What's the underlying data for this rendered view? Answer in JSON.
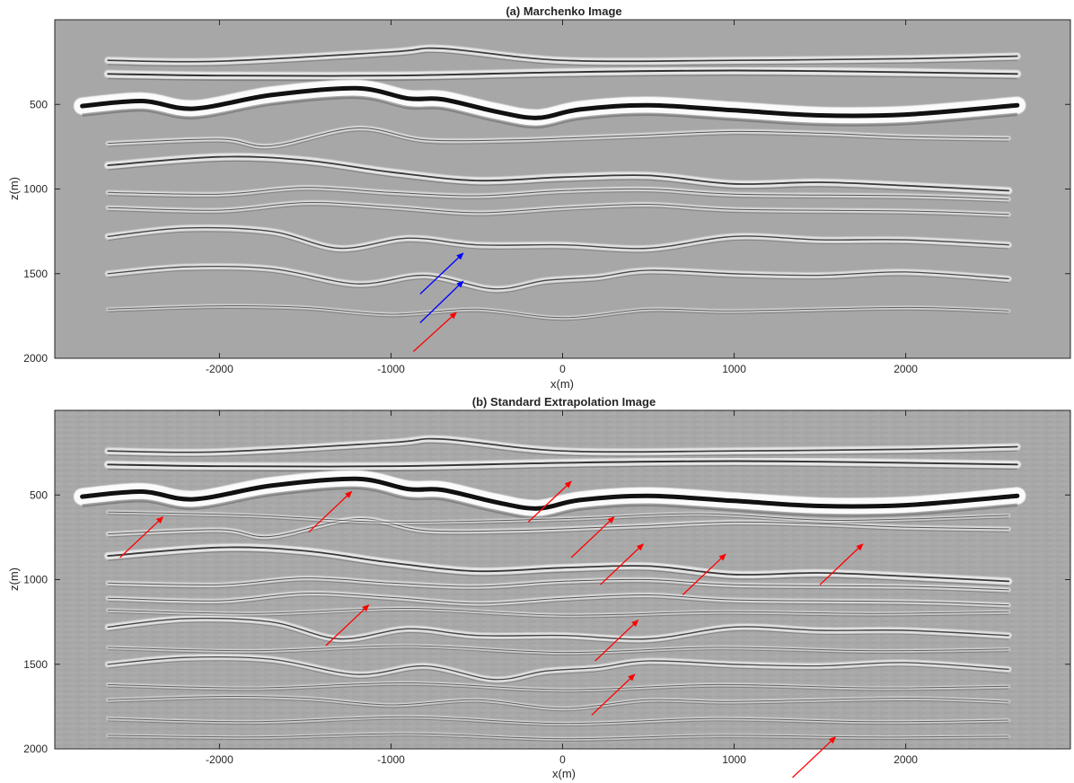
{
  "chart_data": [
    {
      "type": "seismic-image",
      "title": "(a) Marchenko Image",
      "xlabel": "x(m)",
      "ylabel": "z(m)",
      "xlim": [
        -2960,
        2960
      ],
      "ylim": [
        2000,
        0
      ],
      "xticks": [
        -2000,
        -1000,
        0,
        1000,
        2000
      ],
      "xtick_labels": [
        "-2000",
        "-1000",
        "0",
        "1000",
        "2000"
      ],
      "yticks": [
        500,
        1000,
        1500,
        2000
      ],
      "ytick_labels": [
        "500",
        "1000",
        "1500",
        "2000"
      ],
      "reflectors": [
        {
          "strength": 3.0,
          "x": [
            -2650,
            -2000,
            -1000,
            -700,
            0,
            1000,
            2000,
            2650
          ],
          "z": [
            240,
            245,
            190,
            170,
            240,
            240,
            230,
            215
          ]
        },
        {
          "strength": 3.5,
          "x": [
            -2650,
            -2000,
            -1000,
            0,
            1000,
            2000,
            2650
          ],
          "z": [
            320,
            330,
            330,
            310,
            300,
            310,
            320
          ]
        },
        {
          "strength": 9.0,
          "x": [
            -2800,
            -2450,
            -2150,
            -1700,
            -1200,
            -900,
            -700,
            -400,
            -150,
            100,
            500,
            1000,
            1500,
            2000,
            2650
          ],
          "z": [
            510,
            480,
            525,
            445,
            405,
            465,
            470,
            540,
            580,
            530,
            505,
            535,
            565,
            560,
            505
          ]
        },
        {
          "strength": 1.6,
          "x": [
            -2650,
            -2000,
            -1700,
            -1200,
            -800,
            -300,
            0,
            500,
            1000,
            1500,
            2000,
            2600
          ],
          "z": [
            730,
            705,
            745,
            640,
            710,
            710,
            700,
            680,
            660,
            670,
            690,
            700
          ]
        },
        {
          "strength": 3.2,
          "x": [
            -2650,
            -2000,
            -1500,
            -1000,
            -500,
            0,
            500,
            1000,
            1500,
            2000,
            2600
          ],
          "z": [
            860,
            810,
            830,
            900,
            950,
            930,
            920,
            970,
            960,
            980,
            1010
          ]
        },
        {
          "strength": 1.6,
          "x": [
            -2650,
            -2000,
            -1500,
            -1000,
            -500,
            0,
            500,
            1000,
            2000,
            2600
          ],
          "z": [
            1020,
            1030,
            990,
            1020,
            1040,
            1010,
            1000,
            1030,
            1040,
            1060
          ]
        },
        {
          "strength": 1.6,
          "x": [
            -2650,
            -2000,
            -1500,
            -1000,
            -500,
            0,
            500,
            1000,
            2000,
            2600
          ],
          "z": [
            1110,
            1125,
            1080,
            1105,
            1140,
            1110,
            1090,
            1120,
            1130,
            1150
          ]
        },
        {
          "strength": 2.6,
          "x": [
            -2650,
            -2200,
            -1700,
            -1300,
            -900,
            -500,
            0,
            500,
            1000,
            1500,
            2000,
            2600
          ],
          "z": [
            1280,
            1230,
            1250,
            1350,
            1290,
            1330,
            1330,
            1350,
            1280,
            1300,
            1300,
            1330
          ]
        },
        {
          "strength": 2.4,
          "x": [
            -2650,
            -2200,
            -1700,
            -1200,
            -800,
            -400,
            -100,
            200,
            500,
            1000,
            1500,
            2000,
            2600
          ],
          "z": [
            1500,
            1460,
            1470,
            1560,
            1510,
            1590,
            1540,
            1520,
            1480,
            1500,
            1510,
            1490,
            1530
          ]
        },
        {
          "strength": 1.0,
          "x": [
            -2650,
            -2000,
            -1500,
            -1000,
            -500,
            0,
            500,
            1000,
            2000,
            2600
          ],
          "z": [
            1710,
            1690,
            1700,
            1740,
            1710,
            1760,
            1710,
            1720,
            1700,
            1720
          ]
        }
      ],
      "arrows": [
        {
          "color": "#0000ff",
          "x1": -830,
          "z1": 1620,
          "x2": -580,
          "z2": 1380
        },
        {
          "color": "#0000ff",
          "x1": -830,
          "z1": 1790,
          "x2": -580,
          "z2": 1545
        },
        {
          "color": "#ff0000",
          "x1": -870,
          "z1": 1960,
          "x2": -620,
          "z2": 1730
        }
      ]
    },
    {
      "type": "seismic-image",
      "title": "(b) Standard Extrapolation Image",
      "xlabel": "x(m)",
      "ylabel": "z(m)",
      "xlim": [
        -2960,
        2960
      ],
      "ylim": [
        2000,
        0
      ],
      "xticks": [
        -2000,
        -1000,
        0,
        1000,
        2000
      ],
      "xtick_labels": [
        "-2000",
        "-1000",
        "0",
        "1000",
        "2000"
      ],
      "yticks": [
        500,
        1000,
        1500,
        2000
      ],
      "ytick_labels": [
        "500",
        "1000",
        "1500",
        "2000"
      ],
      "reflectors": [
        {
          "strength": 3.0,
          "x": [
            -2650,
            -2000,
            -1000,
            -700,
            0,
            1000,
            2000,
            2650
          ],
          "z": [
            240,
            245,
            190,
            170,
            240,
            240,
            230,
            215
          ]
        },
        {
          "strength": 3.5,
          "x": [
            -2650,
            -2000,
            -1000,
            0,
            1000,
            2000,
            2650
          ],
          "z": [
            320,
            330,
            330,
            310,
            300,
            310,
            320
          ]
        },
        {
          "strength": 9.0,
          "x": [
            -2800,
            -2450,
            -2150,
            -1700,
            -1200,
            -900,
            -700,
            -400,
            -150,
            100,
            500,
            1000,
            1500,
            2000,
            2650
          ],
          "z": [
            510,
            480,
            525,
            445,
            405,
            465,
            470,
            540,
            580,
            530,
            505,
            535,
            565,
            560,
            505
          ]
        },
        {
          "strength": 1.6,
          "x": [
            -2650,
            -2000,
            -1700,
            -1200,
            -800,
            -300,
            0,
            500,
            1000,
            1500,
            2000,
            2600
          ],
          "z": [
            730,
            705,
            745,
            640,
            710,
            710,
            700,
            680,
            660,
            670,
            690,
            700
          ]
        },
        {
          "strength": 3.2,
          "x": [
            -2650,
            -2000,
            -1500,
            -1000,
            -500,
            0,
            500,
            1000,
            1500,
            2000,
            2600
          ],
          "z": [
            860,
            810,
            830,
            900,
            950,
            930,
            920,
            970,
            960,
            980,
            1010
          ]
        },
        {
          "strength": 1.6,
          "x": [
            -2650,
            -2000,
            -1500,
            -1000,
            -500,
            0,
            500,
            1000,
            2000,
            2600
          ],
          "z": [
            1020,
            1030,
            990,
            1020,
            1040,
            1010,
            1000,
            1030,
            1040,
            1060
          ]
        },
        {
          "strength": 1.6,
          "x": [
            -2650,
            -2000,
            -1500,
            -1000,
            -500,
            0,
            500,
            1000,
            2000,
            2600
          ],
          "z": [
            1110,
            1125,
            1080,
            1105,
            1140,
            1110,
            1090,
            1120,
            1130,
            1150
          ]
        },
        {
          "strength": 2.6,
          "x": [
            -2650,
            -2200,
            -1700,
            -1300,
            -900,
            -500,
            0,
            500,
            1000,
            1500,
            2000,
            2600
          ],
          "z": [
            1280,
            1230,
            1250,
            1350,
            1290,
            1330,
            1330,
            1350,
            1280,
            1300,
            1300,
            1330
          ]
        },
        {
          "strength": 2.4,
          "x": [
            -2650,
            -2200,
            -1700,
            -1200,
            -800,
            -400,
            -100,
            200,
            500,
            1000,
            1500,
            2000,
            2600
          ],
          "z": [
            1500,
            1460,
            1470,
            1560,
            1510,
            1590,
            1540,
            1520,
            1480,
            1500,
            1510,
            1490,
            1530
          ]
        },
        {
          "strength": 1.0,
          "x": [
            -2650,
            -2000,
            -1500,
            -1000,
            -500,
            0,
            500,
            1000,
            2000,
            2600
          ],
          "z": [
            1710,
            1690,
            1700,
            1740,
            1710,
            1760,
            1710,
            1720,
            1700,
            1720
          ]
        },
        {
          "strength": 1.0,
          "x": [
            -2650,
            -1800,
            -1000,
            0,
            800,
            1600,
            2600
          ],
          "z": [
            600,
            620,
            660,
            640,
            610,
            650,
            620
          ]
        },
        {
          "strength": 1.0,
          "x": [
            -2650,
            -1800,
            -900,
            0,
            900,
            1800,
            2600
          ],
          "z": [
            1180,
            1200,
            1170,
            1210,
            1190,
            1200,
            1190
          ]
        },
        {
          "strength": 0.9,
          "x": [
            -2650,
            -1800,
            -900,
            0,
            900,
            1800,
            2600
          ],
          "z": [
            1400,
            1420,
            1390,
            1430,
            1400,
            1420,
            1410
          ]
        },
        {
          "strength": 0.9,
          "x": [
            -2650,
            -1800,
            -900,
            0,
            900,
            1800,
            2600
          ],
          "z": [
            1620,
            1640,
            1610,
            1650,
            1620,
            1640,
            1630
          ]
        },
        {
          "strength": 0.9,
          "x": [
            -2650,
            -1800,
            -900,
            0,
            900,
            1800,
            2600
          ],
          "z": [
            1820,
            1840,
            1810,
            1850,
            1820,
            1840,
            1830
          ]
        },
        {
          "strength": 0.8,
          "x": [
            -2650,
            -1800,
            -900,
            0,
            900,
            1800,
            2600
          ],
          "z": [
            1920,
            1930,
            1910,
            1940,
            1920,
            1930,
            1925
          ]
        }
      ],
      "arrows": [
        {
          "color": "#ff0000",
          "x1": -2580,
          "z1": 870,
          "x2": -2330,
          "z2": 630
        },
        {
          "color": "#ff0000",
          "x1": -1480,
          "z1": 720,
          "x2": -1230,
          "z2": 480
        },
        {
          "color": "#ff0000",
          "x1": -200,
          "z1": 660,
          "x2": 50,
          "z2": 420
        },
        {
          "color": "#ff0000",
          "x1": 50,
          "z1": 870,
          "x2": 300,
          "z2": 630
        },
        {
          "color": "#ff0000",
          "x1": 220,
          "z1": 1030,
          "x2": 470,
          "z2": 790
        },
        {
          "color": "#ff0000",
          "x1": 700,
          "z1": 1090,
          "x2": 950,
          "z2": 850
        },
        {
          "color": "#ff0000",
          "x1": 1500,
          "z1": 1030,
          "x2": 1750,
          "z2": 790
        },
        {
          "color": "#ff0000",
          "x1": -1380,
          "z1": 1390,
          "x2": -1130,
          "z2": 1150
        },
        {
          "color": "#ff0000",
          "x1": 190,
          "z1": 1480,
          "x2": 440,
          "z2": 1240
        },
        {
          "color": "#ff0000",
          "x1": 170,
          "z1": 1800,
          "x2": 420,
          "z2": 1560
        },
        {
          "color": "#ff0000",
          "x1": 1340,
          "z1": 2170,
          "x2": 1590,
          "z2": 1930
        }
      ]
    }
  ]
}
